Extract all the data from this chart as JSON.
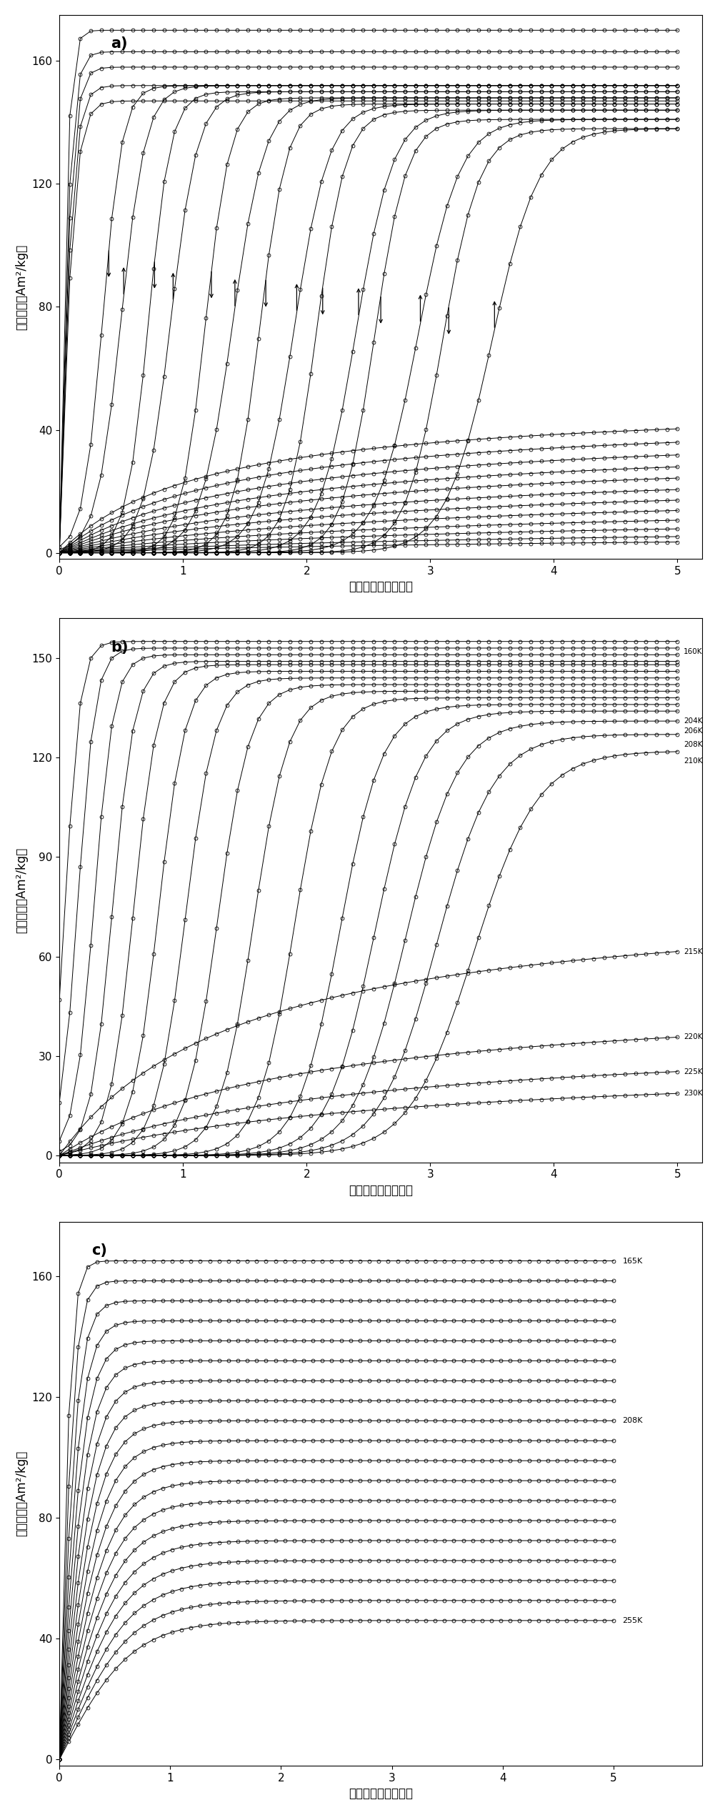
{
  "fig_width": 10.08,
  "fig_height": 25.4,
  "dpi": 100,
  "panel_labels": [
    "a)",
    "b)",
    "c)"
  ],
  "xlim_a": [
    0,
    5.2
  ],
  "ylim_a": [
    -2,
    175
  ],
  "xlim_b": [
    0,
    5.2
  ],
  "ylim_b": [
    -2,
    162
  ],
  "xlim_c": [
    0,
    5.8
  ],
  "ylim_c": [
    -2,
    178
  ],
  "yticks_a": [
    0,
    40,
    80,
    120,
    160
  ],
  "yticks_b": [
    0,
    30,
    60,
    90,
    120,
    150
  ],
  "yticks_c": [
    0,
    40,
    80,
    120,
    160
  ],
  "xticks_a": [
    0,
    1,
    2,
    3,
    4,
    5
  ],
  "xticks_b": [
    0,
    1,
    2,
    3,
    4,
    5
  ],
  "xticks_c": [
    0,
    1,
    2,
    3,
    4,
    5
  ],
  "xlabel_fontsize": 12,
  "ylabel_fontsize": 12,
  "tick_fontsize": 11,
  "panel_label_fontsize": 15,
  "markersize": 3.5,
  "linewidth": 0.7,
  "markeredgewidth": 0.6
}
